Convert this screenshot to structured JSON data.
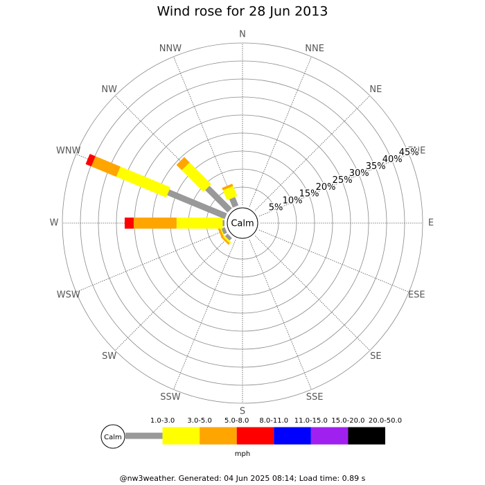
{
  "chart_data": {
    "type": "wind-rose",
    "title": "Wind rose for 28 Jun 2013",
    "directions": [
      "N",
      "NNE",
      "NE",
      "ENE",
      "E",
      "ESE",
      "SE",
      "SSE",
      "S",
      "SSW",
      "SW",
      "WSW",
      "W",
      "WNW",
      "NW",
      "NNW"
    ],
    "calm_label": "Calm",
    "rlim": [
      0,
      45
    ],
    "rticks": [
      {
        "value": 5,
        "label": "5%"
      },
      {
        "value": 10,
        "label": "10%"
      },
      {
        "value": 15,
        "label": "15%"
      },
      {
        "value": 20,
        "label": "20%"
      },
      {
        "value": 25,
        "label": "25%"
      },
      {
        "value": 30,
        "label": "30%"
      },
      {
        "value": 35,
        "label": "35%"
      },
      {
        "value": 40,
        "label": "40%"
      },
      {
        "value": 45,
        "label": "45%"
      }
    ],
    "series": [
      {
        "name": "1.0-3.0",
        "color": "#999999",
        "values": [
          0,
          0,
          0,
          0,
          0,
          0,
          0,
          0,
          0,
          0,
          1,
          1,
          0.5,
          17.3,
          8.8,
          2.5
        ]
      },
      {
        "name": "3.0-5.0",
        "color": "#ffff00",
        "values": [
          0,
          0,
          0,
          0,
          0,
          0,
          0,
          0,
          0,
          0,
          0.5,
          0.3,
          12.8,
          15,
          8.5,
          3
        ]
      },
      {
        "name": "5.0-8.0",
        "color": "#ffa500",
        "values": [
          0,
          0,
          0,
          0,
          0,
          0,
          0,
          0,
          0,
          0,
          0.5,
          0.6,
          11.9,
          7.5,
          2.1,
          0.7
        ]
      },
      {
        "name": "8.0-11.0",
        "color": "#ff0000",
        "values": [
          0,
          0,
          0,
          0,
          0,
          0,
          0,
          0,
          0,
          0,
          0,
          0,
          2.5,
          1.7,
          0,
          0
        ]
      },
      {
        "name": "11.0-15.0",
        "color": "#0000ff",
        "values": [
          0,
          0,
          0,
          0,
          0,
          0,
          0,
          0,
          0,
          0,
          0,
          0,
          0,
          0,
          0,
          0
        ]
      },
      {
        "name": "15.0-20.0",
        "color": "#a020f0",
        "values": [
          0,
          0,
          0,
          0,
          0,
          0,
          0,
          0,
          0,
          0,
          0,
          0,
          0,
          0,
          0,
          0
        ]
      },
      {
        "name": "20.0-50.0",
        "color": "#000000",
        "values": [
          0,
          0,
          0,
          0,
          0,
          0,
          0,
          0,
          0,
          0,
          0,
          0,
          0,
          0,
          0,
          0
        ]
      }
    ],
    "legend_unit": "mph",
    "footer": "@nw3weather. Generated: 04 Jun 2025 08:14; Load time: 0.89 s"
  }
}
